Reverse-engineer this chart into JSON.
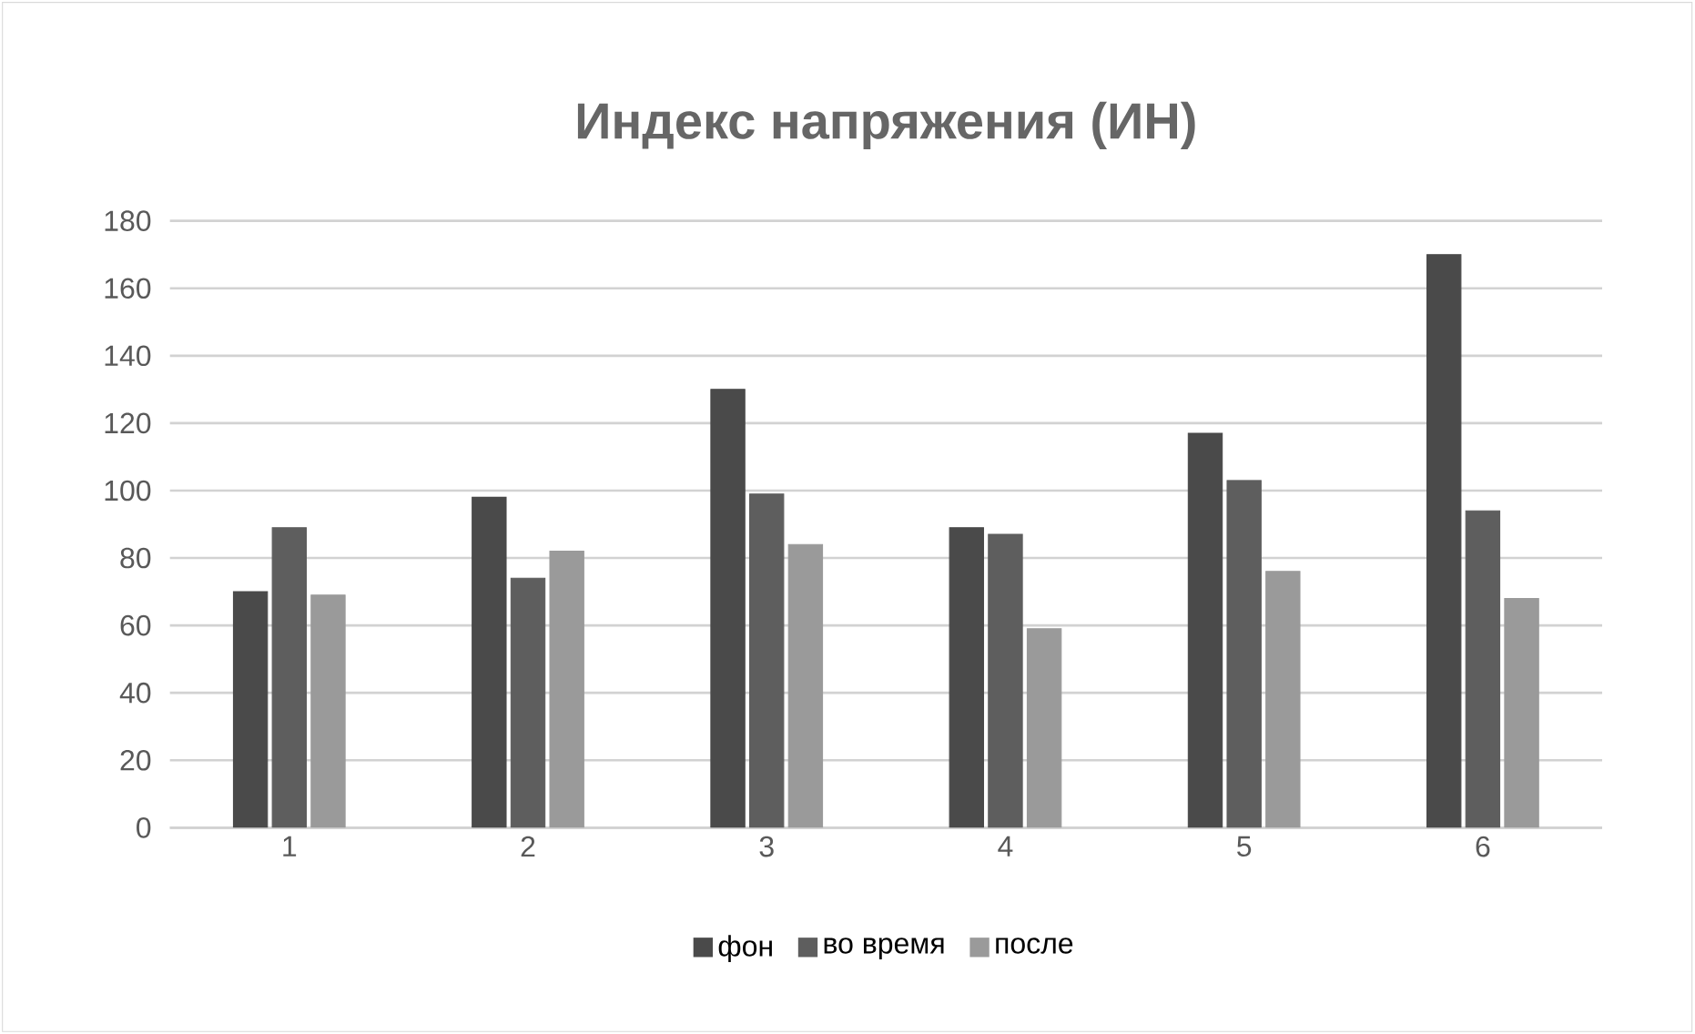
{
  "chart_data": {
    "type": "bar",
    "title": "Индекс напряжения  (ИН)",
    "categories": [
      "1",
      "2",
      "3",
      "4",
      "5",
      "6"
    ],
    "series": [
      {
        "name": "фон",
        "color": "#4a4a4a",
        "values": [
          70,
          98,
          130,
          89,
          117,
          170
        ]
      },
      {
        "name": "во время",
        "color": "#5e5e5e",
        "values": [
          89,
          74,
          99,
          87,
          103,
          94
        ]
      },
      {
        "name": "после",
        "color": "#9a9a9a",
        "values": [
          69,
          82,
          84,
          59,
          76,
          68
        ]
      }
    ],
    "ylim": [
      0,
      180
    ],
    "yticks": [
      0,
      20,
      40,
      60,
      80,
      100,
      120,
      140,
      160,
      180
    ],
    "grid": "y",
    "legend": "bottom"
  }
}
